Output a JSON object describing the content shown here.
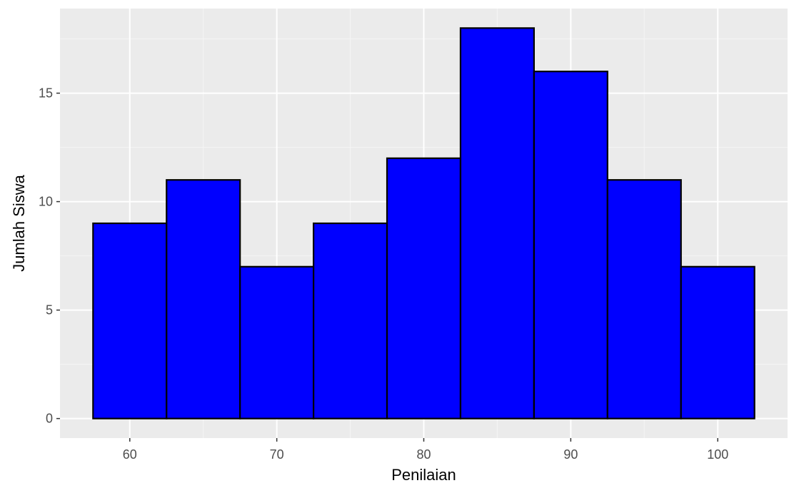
{
  "chart_data": {
    "type": "bar",
    "subtype": "histogram",
    "xlabel": "Penilaian",
    "ylabel": "Jumlah Siswa",
    "bin_width": 5,
    "bins": [
      {
        "from": 57.5,
        "to": 62.5,
        "count": 9
      },
      {
        "from": 62.5,
        "to": 67.5,
        "count": 11
      },
      {
        "from": 67.5,
        "to": 72.5,
        "count": 7
      },
      {
        "from": 72.5,
        "to": 77.5,
        "count": 9
      },
      {
        "from": 77.5,
        "to": 82.5,
        "count": 12
      },
      {
        "from": 82.5,
        "to": 87.5,
        "count": 18
      },
      {
        "from": 87.5,
        "to": 92.5,
        "count": 16
      },
      {
        "from": 92.5,
        "to": 97.5,
        "count": 11
      },
      {
        "from": 97.5,
        "to": 102.5,
        "count": 7
      }
    ],
    "xlim": [
      55.25,
      104.75
    ],
    "ylim": [
      -0.9,
      18.9
    ],
    "x_ticks": [
      60,
      70,
      80,
      90,
      100
    ],
    "y_ticks": [
      0,
      5,
      10,
      15
    ],
    "grid": true,
    "colors": {
      "panel_background": "#EBEBEB",
      "grid_major": "#FFFFFF",
      "grid_minor": "#F5F5F5",
      "bar_fill": "#0000FF",
      "bar_outline": "#000000"
    }
  }
}
